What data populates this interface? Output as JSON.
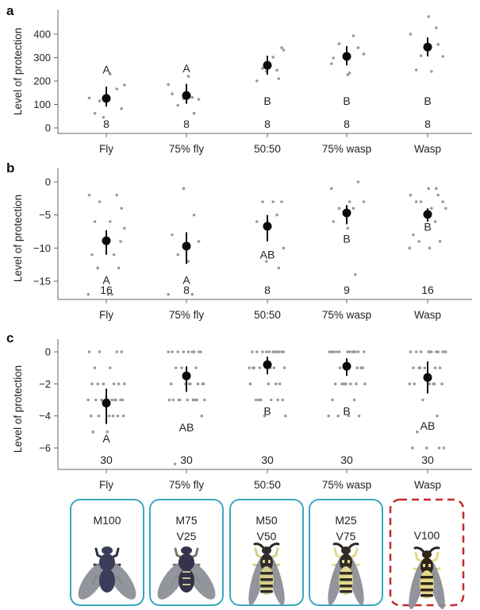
{
  "figure": {
    "insect_legend": [
      {
        "lines": [
          "M100"
        ],
        "style": "solid",
        "color": "#3aa8c1",
        "insect": "fly",
        "body": "#3a3d5a",
        "stripe": null
      },
      {
        "lines": [
          "M75",
          "V25"
        ],
        "style": "solid",
        "color": "#3aa8c1",
        "insect": "fly",
        "body": "#34334a",
        "stripe": "#c8c590"
      },
      {
        "lines": [
          "M50",
          "V50"
        ],
        "style": "solid",
        "color": "#3aa8c1",
        "insect": "wasp",
        "body": "#2f2d2c",
        "stripe": "#d4cf8a"
      },
      {
        "lines": [
          "M25",
          "V75"
        ],
        "style": "solid",
        "color": "#3aa8c1",
        "insect": "wasp",
        "body": "#302c25",
        "stripe": "#e2d98c"
      },
      {
        "lines": [
          "V100"
        ],
        "style": "dashed",
        "color": "#c8282d",
        "insect": "wasp",
        "body": "#2e2618",
        "stripe": "#e6d88c"
      }
    ]
  },
  "chart_data": [
    {
      "type": "scatter",
      "panel": "a",
      "title": "",
      "xlabel": "",
      "ylabel": "Level of protection",
      "categories": [
        "Fly",
        "75% fly",
        "50:50",
        "75% wasp",
        "Wasp"
      ],
      "yticks": [
        0,
        100,
        200,
        300,
        400
      ],
      "ylim": [
        -25,
        500
      ],
      "grid": false,
      "legend": "none",
      "points": [
        [
          128,
          166,
          115,
          82,
          62,
          230,
          183,
          45
        ],
        [
          125,
          62,
          145,
          122,
          96,
          220,
          185,
          130
        ],
        [
          302,
          342,
          254,
          246,
          200,
          332,
          241,
          210
        ],
        [
          342,
          274,
          234,
          315,
          359,
          393,
          298,
          227
        ],
        [
          475,
          427,
          400,
          356,
          308,
          305,
          247,
          241
        ]
      ],
      "means": [
        126,
        138,
        267,
        305,
        345
      ],
      "ci": [
        [
          91,
          176
        ],
        [
          103,
          188
        ],
        [
          227,
          308
        ],
        [
          267,
          349
        ],
        [
          305,
          386
        ]
      ],
      "letters": [
        "A",
        "A",
        "B",
        "B",
        "B"
      ],
      "letter_values": [
        250,
        255,
        115,
        115,
        115
      ],
      "n": [
        "8",
        "8",
        "8",
        "8",
        "8"
      ]
    },
    {
      "type": "scatter",
      "panel": "b",
      "title": "",
      "xlabel": "",
      "ylabel": "Level of protection",
      "categories": [
        "Fly",
        "75% fly",
        "50:50",
        "75% wasp",
        "Wasp"
      ],
      "yticks": [
        0,
        -5,
        -10,
        -15
      ],
      "ylim": [
        -17.8,
        1.5
      ],
      "grid": false,
      "legend": "none",
      "points": [
        [
          -2,
          -2,
          -3,
          -4,
          -6,
          -6,
          -7,
          -9,
          -11,
          -11,
          -13,
          -13,
          -17,
          -17,
          -17,
          -9
        ],
        [
          -1,
          -5,
          -8,
          -9,
          -11,
          -12,
          -17,
          -17
        ],
        [
          -3,
          -3,
          -3,
          -5,
          -6,
          -10,
          -12,
          -13
        ],
        [
          0,
          -1,
          -3,
          -3,
          -4,
          -4,
          -6,
          -7,
          -14
        ],
        [
          -1,
          -1,
          -2,
          -2,
          -3,
          -3,
          -3,
          -4,
          -4,
          -5,
          -6,
          -8,
          -9,
          -9,
          -10,
          -10
        ]
      ],
      "means": [
        -8.9,
        -9.7,
        -6.7,
        -4.7,
        -4.9
      ],
      "ci": [
        [
          -7.3,
          -11.0
        ],
        [
          -7.6,
          -12.4
        ],
        [
          -5.0,
          -9.0
        ],
        [
          -3.5,
          -6.4
        ],
        [
          -4.0,
          -6.0
        ]
      ],
      "letters": [
        "A",
        "A",
        "AB",
        "B",
        "B"
      ],
      "letter_values": [
        -14.8,
        -14.8,
        -11.0,
        -8.6,
        -6.8
      ],
      "n": [
        "16",
        "8",
        "8",
        "9",
        "16"
      ]
    },
    {
      "type": "scatter",
      "panel": "c",
      "title": "",
      "xlabel": "",
      "ylabel": "Level of protection",
      "categories": [
        "Fly",
        "75% fly",
        "50:50",
        "75% wasp",
        "Wasp"
      ],
      "yticks": [
        0,
        -2,
        -4,
        -6
      ],
      "ylim": [
        -7.3,
        0.5
      ],
      "grid": false,
      "legend": "none",
      "points": [
        [
          0,
          0,
          0,
          0,
          -1,
          -1,
          -2,
          -2,
          -2,
          -2,
          -2,
          -2,
          -3,
          -3,
          -3,
          -3,
          -3,
          -3,
          -3,
          -3,
          -3,
          -4,
          -4,
          -4,
          -4,
          -4,
          -4,
          -5,
          -5,
          -3
        ],
        [
          0,
          0,
          0,
          0,
          0,
          0,
          0,
          0,
          0,
          -1,
          -1,
          -1,
          -2,
          -2,
          -2,
          -2,
          -2,
          -2,
          -3,
          -3,
          -3,
          -3,
          -3,
          -3,
          -3,
          -3,
          -4,
          -7,
          -2,
          -3
        ],
        [
          0,
          0,
          0,
          0,
          0,
          0,
          0,
          0,
          0,
          -1,
          -1,
          -1,
          -1,
          -1,
          -2,
          -2,
          -2,
          -3,
          -3,
          -3,
          -3,
          -3,
          -4,
          -4,
          0,
          -1,
          -2,
          -3,
          0,
          -1
        ],
        [
          0,
          0,
          0,
          0,
          0,
          0,
          0,
          0,
          0,
          0,
          -1,
          -1,
          -1,
          -2,
          -2,
          -2,
          -2,
          -3,
          -3,
          -4,
          -4,
          -4,
          -4,
          0,
          -1,
          -2,
          -2,
          0,
          -1,
          -2
        ],
        [
          0,
          0,
          0,
          0,
          0,
          0,
          0,
          0,
          0,
          -1,
          -1,
          -1,
          -1,
          -1,
          -2,
          -2,
          -2,
          -2,
          -3,
          -4,
          -5,
          -6,
          -6,
          -6,
          -6,
          0,
          0,
          -1,
          -2,
          -2
        ]
      ],
      "means": [
        -3.2,
        -1.5,
        -0.8,
        -0.9,
        -1.6
      ],
      "ci": [
        [
          -2.3,
          -4.5
        ],
        [
          -0.9,
          -2.5
        ],
        [
          -0.3,
          -1.4
        ],
        [
          -0.4,
          -1.5
        ],
        [
          -0.6,
          -2.6
        ]
      ],
      "letters": [
        "A",
        "AB",
        "B",
        "B",
        "AB"
      ],
      "letter_values": [
        -5.4,
        -4.7,
        -3.7,
        -3.7,
        -4.6
      ],
      "n": [
        "30",
        "30",
        "30",
        "30",
        "30"
      ]
    }
  ]
}
